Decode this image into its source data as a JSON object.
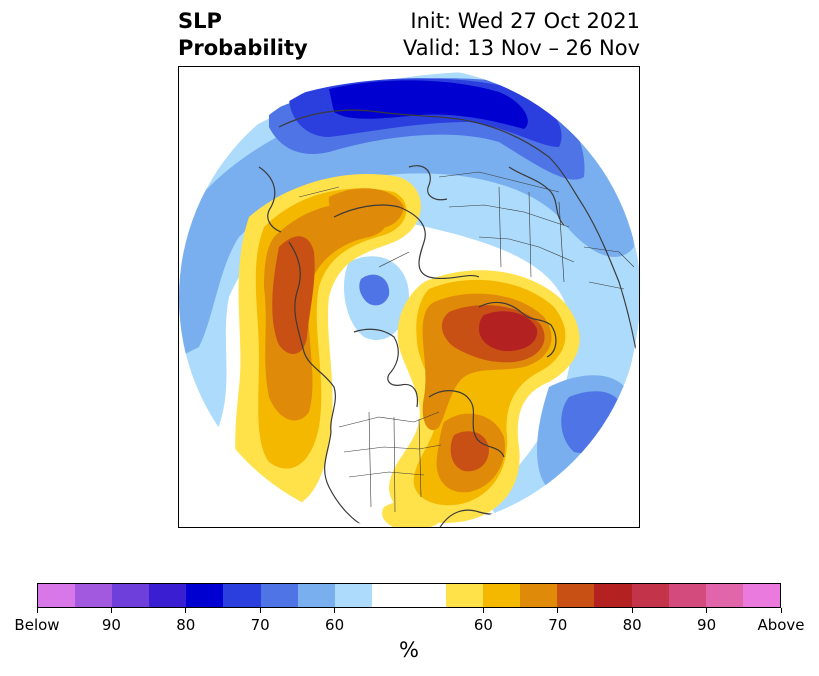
{
  "title": {
    "left_line1": "SLP",
    "left_line2": "Probability",
    "right_line1": "Init: Wed 27 Oct 2021",
    "right_line2": "Valid: 13 Nov – 26 Nov"
  },
  "colorbar": {
    "unit": "%",
    "colors": [
      "#d877e8",
      "#a259e0",
      "#6f3fdc",
      "#3a1fd2",
      "#0000d0",
      "#2b3fdf",
      "#4f74e6",
      "#79afee",
      "#acdbfb",
      "#ffffff",
      "#ffffff",
      "#ffe14a",
      "#f4b800",
      "#e08a0a",
      "#c95014",
      "#b32121",
      "#c3344b",
      "#d24b7c",
      "#e065a9",
      "#eb7adf"
    ],
    "tick_labels": [
      "Below",
      "90",
      "80",
      "70",
      "60",
      "60",
      "70",
      "80",
      "90",
      "Above"
    ]
  },
  "map": {
    "projection": "north-polar-stereographic",
    "colors": {
      "below_60": "#acdbfb",
      "below_65": "#79afee",
      "below_70": "#4f74e6",
      "below_75": "#2b3fdf",
      "below_80": "#0000d0",
      "above_60": "#ffe14a",
      "above_65": "#f4b800",
      "above_70": "#e08a0a",
      "above_75": "#c95014",
      "above_80": "#b32121",
      "coast": "#3a3a3a"
    }
  }
}
